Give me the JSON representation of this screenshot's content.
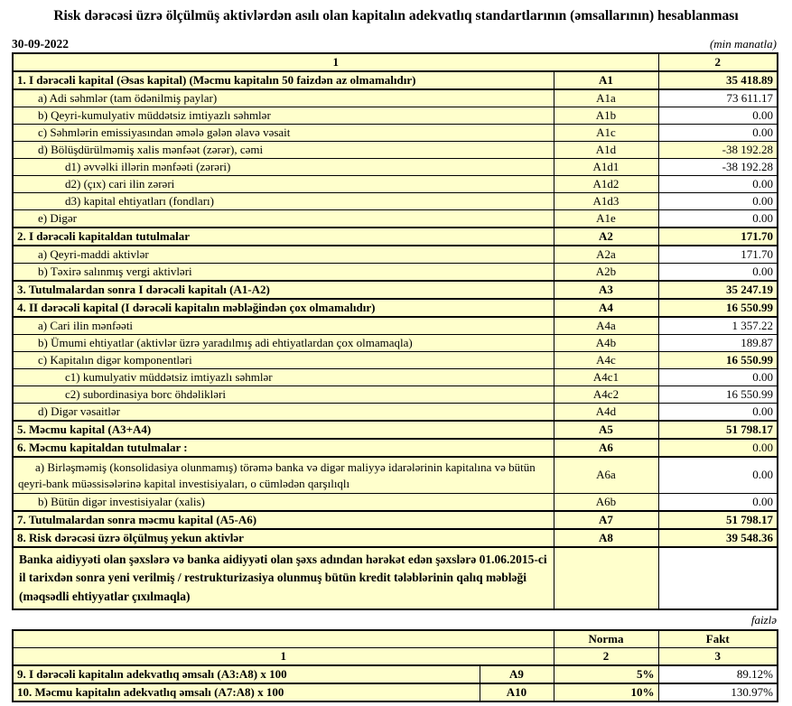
{
  "title": "Risk dərəcəsi üzrə ölçülmüş aktivlərdən asılı olan kapitalın adekvatlıq standartlarının (əmsallarının) hesablanması",
  "meta": {
    "date": "30-09-2022",
    "unit_note": "(min manatla)",
    "percent_note": "faizlə"
  },
  "main_table": {
    "header": {
      "col1": "1",
      "col2": "2"
    },
    "rows": [
      {
        "label": "1. I dərəcəli kapital (Əsas kapital) (Məcmu kapitalın 50 faizdən  az olmamalıdır)",
        "code": "A1",
        "value": "35 418.89",
        "indent": 0,
        "bold": true,
        "value_bg": "yellow",
        "value_bold": true,
        "section": true
      },
      {
        "label": "a) Adi səhmlər (tam ödənilmiş paylar)",
        "code": "A1a",
        "value": "73 611.17",
        "indent": 1,
        "value_bg": "white"
      },
      {
        "label": "b) Qeyri-kumulyativ müddətsiz imtiyazlı səhmlər",
        "code": "A1b",
        "value": "0.00",
        "indent": 1,
        "value_bg": "white"
      },
      {
        "label": "c) Səhmlərin emissiyasından əmələ gələn  əlavə vəsait",
        "code": "A1c",
        "value": "0.00",
        "indent": 1,
        "value_bg": "white"
      },
      {
        "label": "d)   Bölüşdürülməmiş xalis mənfəət (zərər), cəmi",
        "code": "A1d",
        "value": "-38 192.28",
        "indent": 1,
        "value_bg": "yellow"
      },
      {
        "label": "d1) əvvəlki illərin mənfəəti (zərəri)",
        "code": "A1d1",
        "value": "-38 192.28",
        "indent": 2,
        "value_bg": "white"
      },
      {
        "label": "d2) (çıx) cari ilin zərəri",
        "code": "A1d2",
        "value": "0.00",
        "indent": 2,
        "value_bg": "white"
      },
      {
        "label": "d3) kapital ehtiyatları (fondları)",
        "code": "A1d3",
        "value": "0.00",
        "indent": 2,
        "value_bg": "white"
      },
      {
        "label": "e) Digər",
        "code": "A1e",
        "value": "0.00",
        "indent": 1,
        "value_bg": "white"
      },
      {
        "label": "2. I dərəcəli kapitaldan  tutulmalar",
        "code": "A2",
        "value": "171.70",
        "indent": 0,
        "bold": true,
        "value_bg": "yellow",
        "value_bold": true,
        "section": true
      },
      {
        "label": "a) Qeyri-maddi aktivlər",
        "code": "A2a",
        "value": "171.70",
        "indent": 1,
        "value_bg": "white"
      },
      {
        "label": "b) Təxirə salınmış vergi aktivləri",
        "code": "A2b",
        "value": "0.00",
        "indent": 1,
        "value_bg": "white"
      },
      {
        "label": "3. Tutulmalardan  sonra I dərəcəli kapitalı (A1-A2)",
        "code": "A3",
        "value": "35 247.19",
        "indent": 0,
        "bold": true,
        "value_bg": "yellow",
        "value_bold": true,
        "section": true
      },
      {
        "label": "4. II dərəcəli  kapital (I dərəcəli  kapitalın  məbləğindən çox olmamalıdır)",
        "code": "A4",
        "value": "16 550.99",
        "indent": 0,
        "bold": true,
        "value_bg": "yellow",
        "value_bold": true,
        "section": true
      },
      {
        "label": "a) Cari ilin mənfəəti",
        "code": "A4a",
        "value": "1 357.22",
        "indent": 1,
        "value_bg": "white"
      },
      {
        "label": "b) Ümumi ehtiyatlar (aktivlər üzrə yaradılmış adi ehtiyatlardan çox olmamaqla)",
        "code": "A4b",
        "value": "189.87",
        "indent": 1,
        "value_bg": "white"
      },
      {
        "label": "c)  Kapitalın digər komponentləri",
        "code": "A4c",
        "value": "16 550.99",
        "indent": 1,
        "value_bg": "yellow",
        "value_bold": true
      },
      {
        "label": "c1) kumulyativ müddətsiz imtiyazlı səhmlər",
        "code": "A4c1",
        "value": "0.00",
        "indent": 2,
        "value_bg": "white"
      },
      {
        "label": "c2) subordinasiya borc öhdəlikləri",
        "code": "A4c2",
        "value": "16 550.99",
        "indent": 2,
        "value_bg": "white"
      },
      {
        "label": "d) Digər vəsaitlər",
        "code": "A4d",
        "value": "0.00",
        "indent": 1,
        "value_bg": "white"
      },
      {
        "label": "5. Məcmu kapital (A3+A4)",
        "code": "A5",
        "value": "51 798.17",
        "indent": 0,
        "bold": true,
        "value_bg": "yellow",
        "value_bold": true,
        "section": true
      },
      {
        "label": "6. Məcmu kapitaldan tutulmalar :",
        "code": "A6",
        "value": "0.00",
        "indent": 0,
        "bold": true,
        "value_bg": "yellow",
        "section": true
      },
      {
        "label": "a)   Birləşməmiş (konsolidasiya olunmamış) törəmə banka və digər maliyyə idarələrinin kapitalına və bütün qeyri-bank müəssisələrinə kapital investisiyaları, o cümlədən qarşılıqlı",
        "code": "A6a",
        "value": "0.00",
        "indent": 1,
        "value_bg": "white",
        "wrap": true
      },
      {
        "label": "b) Bütün digər investisiyalar (xalis)",
        "code": "A6b",
        "value": "0.00",
        "indent": 1,
        "value_bg": "white"
      },
      {
        "label": "7. Tutulmalardan  sonra məcmu kapital (A5-A6)",
        "code": "A7",
        "value": "51 798.17",
        "indent": 0,
        "bold": true,
        "value_bg": "yellow",
        "value_bold": true,
        "section": true
      },
      {
        "label": "8. Risk dərəcəsi üzrə ölçülmuş yekun aktivlər",
        "code": "A8",
        "value": "39 548.36",
        "indent": 0,
        "bold": true,
        "value_bg": "yellow",
        "value_bold": true,
        "section": true
      }
    ],
    "note": "Banka aidiyyəti olan şəxslərə və banka aidiyyəti olan şəxs adından hərəkət edən şəxslərə 01.06.2015-ci il tarixdən sonra yeni verilmiş / restrukturizasiya olunmuş bütün kredit tələblərinin qalıq məbləği (məqsədli ehtiyyatlar çıxılmaqla)"
  },
  "ratio_table": {
    "header": {
      "norma": "Norma",
      "fakt": "Fakt",
      "col1": "1",
      "col2": "2",
      "col3": "3"
    },
    "rows": [
      {
        "label": "9. I dərəcəli  kapitalın  adekvatlıq əmsalı (A3:A8) x 100",
        "code": "A9",
        "norma": "5%",
        "fakt": "89.12%"
      },
      {
        "label": "10. Məcmu kapitalın  adekvatlıq  əmsalı (A7:A8) x 100",
        "code": "A10",
        "norma": "10%",
        "fakt": "130.97%"
      }
    ]
  },
  "colors": {
    "cell_yellow": "#FFFFCC",
    "cell_white": "#FFFFFF",
    "border": "#000000",
    "text": "#000000"
  }
}
